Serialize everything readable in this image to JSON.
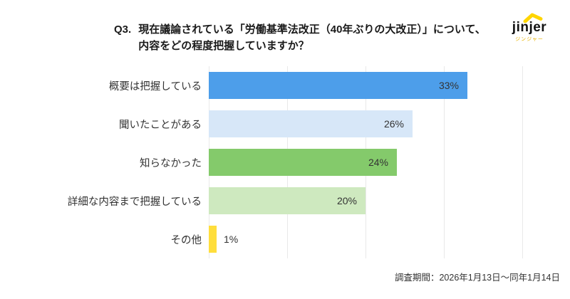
{
  "header": {
    "question_number": "Q3.",
    "title_line1": "現在議論されている「労働基準法改正（40年ぶりの大改正）」について、",
    "title_line2": "内容をどの程度把握していますか？"
  },
  "logo": {
    "name": "jinjer",
    "subtitle": "ジンジャー",
    "roof_color": "#ffd500"
  },
  "chart_data": {
    "type": "bar",
    "orientation": "horizontal",
    "title": "Q3. 現在議論されている「労働基準法改正（40年ぶりの大改正）」について、内容をどの程度把握していますか？",
    "categories": [
      "概要は把握している",
      "聞いたことがある",
      "知らなかった",
      "詳細な内容まで把握している",
      "その他"
    ],
    "values": [
      33,
      26,
      24,
      20,
      1
    ],
    "value_labels": [
      "33%",
      "26%",
      "24%",
      "20%",
      "1%"
    ],
    "bar_colors": [
      "#4d9eea",
      "#d7e7f8",
      "#84ca6b",
      "#cee9bf",
      "#ffde3c"
    ],
    "xlim": [
      0,
      40
    ],
    "gridlines": [
      0,
      10,
      20,
      30,
      40
    ],
    "grid_on": true,
    "grid_color": "#e9e9e9",
    "legend": "none",
    "value_label_inside_min": 5
  },
  "footer": {
    "survey_period": "調査期間：2026年1月13日～同年1月14日"
  }
}
